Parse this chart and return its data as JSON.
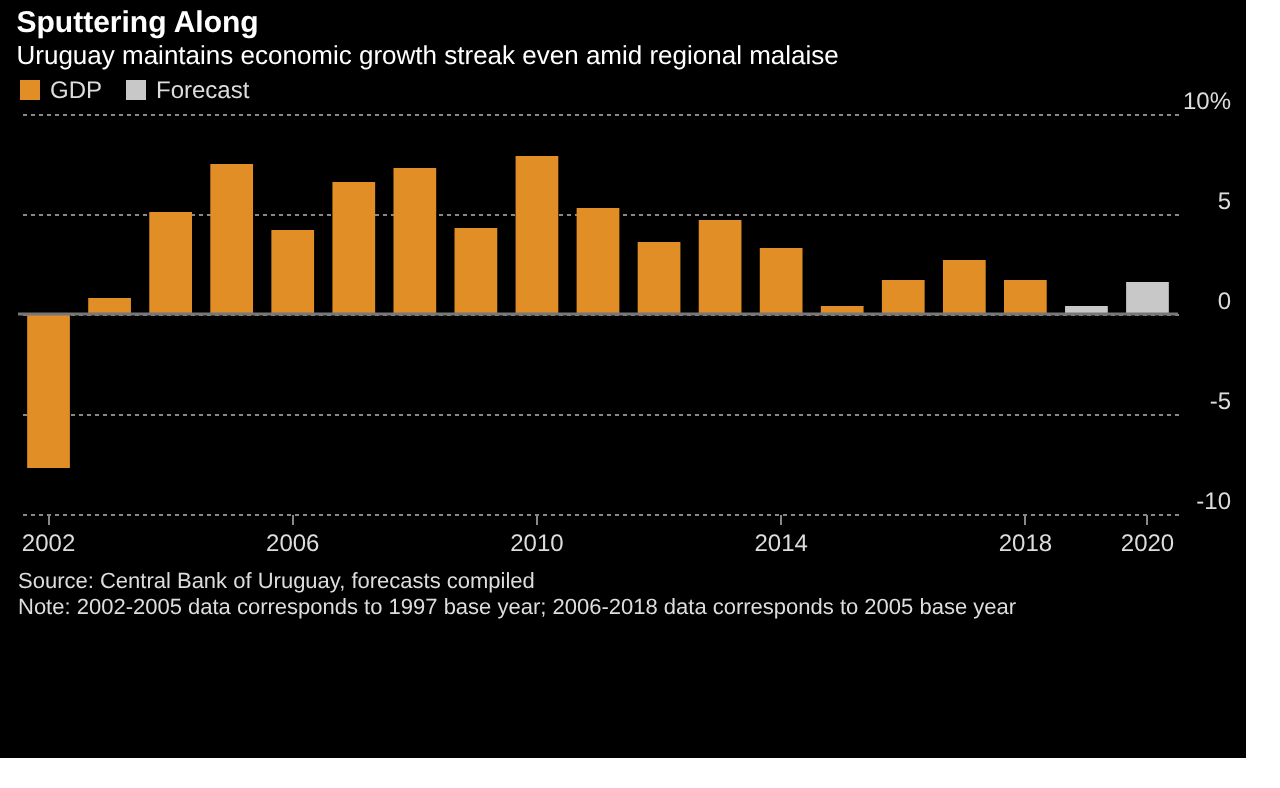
{
  "chart_data": {
    "type": "bar",
    "title": "Sputtering Along",
    "subtitle": "Uruguay maintains economic growth streak even amid regional malaise",
    "categories": [
      "2002",
      null,
      null,
      null,
      "2006",
      null,
      null,
      null,
      "2010",
      null,
      null,
      null,
      "2014",
      null,
      null,
      null,
      "2018",
      null,
      "2020"
    ],
    "series": [
      {
        "name": "GDP",
        "color": "#e08e25",
        "values": [
          -7.7,
          0.8,
          5.1,
          7.5,
          4.2,
          6.6,
          7.3,
          4.3,
          7.9,
          5.3,
          3.6,
          4.7,
          3.3,
          0.4,
          1.7,
          2.7,
          1.7,
          null,
          null
        ]
      },
      {
        "name": "Forecast",
        "color": "#c8c8c8",
        "values": [
          null,
          null,
          null,
          null,
          null,
          null,
          null,
          null,
          null,
          null,
          null,
          null,
          null,
          null,
          null,
          null,
          null,
          0.4,
          1.6
        ]
      }
    ],
    "ylim": [
      -10,
      10
    ],
    "yticks": [
      {
        "value": 10,
        "label": "10%"
      },
      5,
      0,
      -5,
      -10
    ],
    "grid": "y",
    "legend": "top left",
    "ref_lines": [
      {
        "axis": "y",
        "value": 0,
        "color": "#777777",
        "line_style": "solid"
      }
    ],
    "annotations": [
      "Source: Central Bank of Uruguay, forecasts compiled",
      "Note: 2002-2005 data corresponds to 1997 base year; 2006-2018 data corresponds to 2005 base year"
    ]
  }
}
